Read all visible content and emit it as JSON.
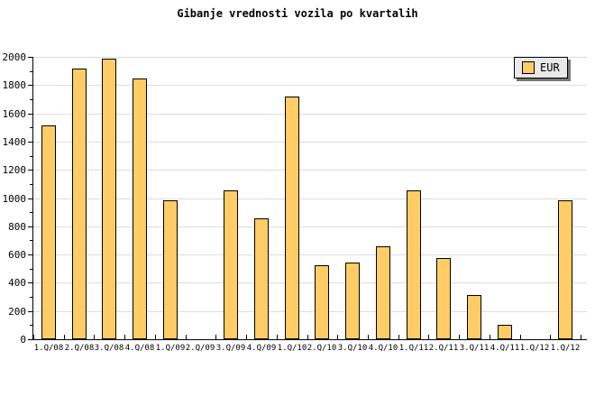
{
  "chart_data": {
    "type": "bar",
    "title": "Gibanje vrednosti vozila po kvartalih",
    "categories": [
      "1.Q/08",
      "2.Q/08",
      "3.Q/08",
      "4.Q/08",
      "1.Q/09",
      "2.Q/09",
      "3.Q/09",
      "4.Q/09",
      "1.Q/10",
      "2.Q/10",
      "3.Q/10",
      "4.Q/10",
      "1.Q/11",
      "2.Q/11",
      "3.Q/11",
      "4.Q/11",
      "1.Q/12",
      "1.Q/12"
    ],
    "series": [
      {
        "name": "EUR",
        "values": [
          1515,
          1920,
          1985,
          1845,
          985,
          0,
          1055,
          855,
          1720,
          525,
          545,
          660,
          1055,
          575,
          315,
          100,
          0,
          985
        ]
      }
    ],
    "xlabel": "",
    "ylabel": "",
    "ylim": [
      0,
      2000
    ],
    "y_major_step": 200,
    "y_minor_step": 100,
    "grid": true,
    "legend_position": "top-right"
  },
  "colors": {
    "background": "#FFFFFF",
    "text": "#000000",
    "axis": "#000000",
    "grid": "#DCDCDC",
    "bar_fill": "#FFCC66",
    "bar_border": "#000000",
    "legend_bg": "#E9E9E9",
    "legend_border": "#000000",
    "legend_shadow": "#777777"
  }
}
